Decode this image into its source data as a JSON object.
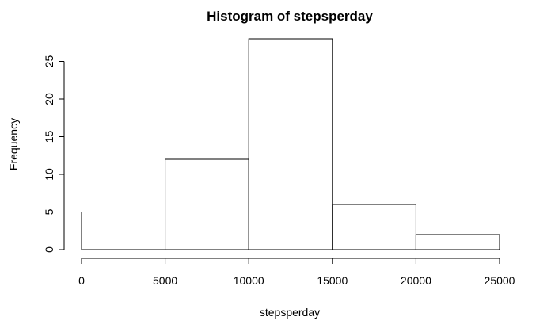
{
  "chart_data": {
    "type": "bar",
    "title": "Histogram of stepsperday",
    "xlabel": "stepsperday",
    "ylabel": "Frequency",
    "bins": [
      {
        "start": 0,
        "end": 5000,
        "value": 5
      },
      {
        "start": 5000,
        "end": 10000,
        "value": 12
      },
      {
        "start": 10000,
        "end": 15000,
        "value": 28
      },
      {
        "start": 15000,
        "end": 20000,
        "value": 6
      },
      {
        "start": 20000,
        "end": 25000,
        "value": 2
      }
    ],
    "x_ticks": [
      0,
      5000,
      10000,
      15000,
      20000,
      25000
    ],
    "y_ticks": [
      0,
      5,
      10,
      15,
      20,
      25
    ],
    "xlim": [
      0,
      25000
    ],
    "ylim": [
      0,
      28
    ],
    "grid": false,
    "legend": "none",
    "colors": {
      "bar_fill": "#ffffff",
      "bar_stroke": "#000000",
      "axis": "#000000",
      "text": "#000000"
    }
  }
}
